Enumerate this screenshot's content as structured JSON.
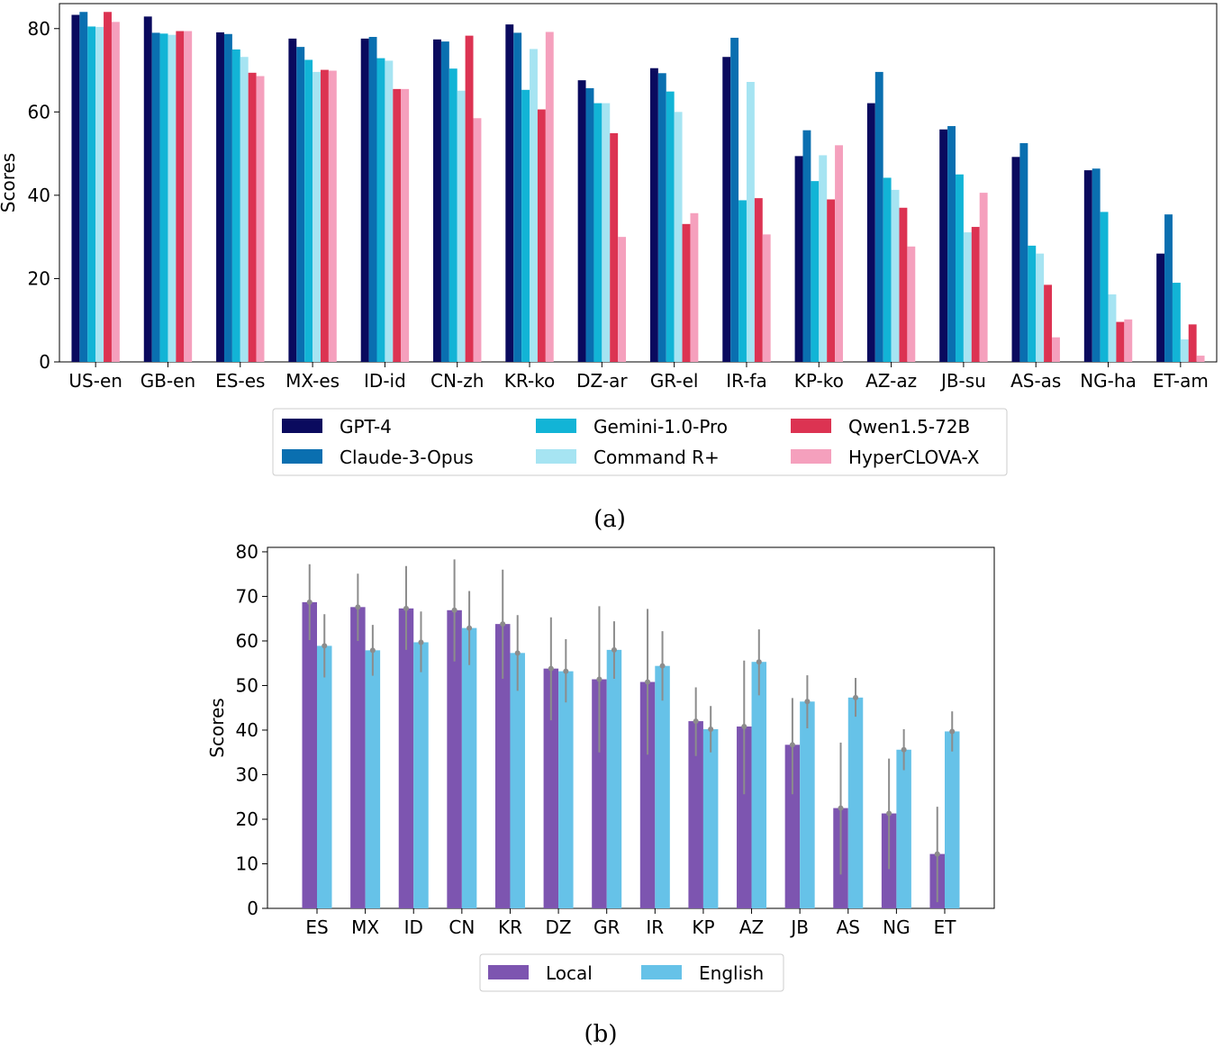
{
  "colors": {
    "gpt4": "#0a0a5e",
    "claude": "#0a6fb0",
    "gemini": "#12b4d6",
    "command": "#a6e4f2",
    "qwen": "#dc3352",
    "hyperclova": "#f5a0bd",
    "local": "#7d55b0",
    "english": "#66c2e8",
    "errorbar": "#8c8c8c"
  },
  "chart_data": [
    {
      "type": "bar",
      "caption": "(a)",
      "ylabel": "Scores",
      "xlabel": "",
      "ylim": [
        0,
        86
      ],
      "yticks": [
        0,
        20,
        40,
        60,
        80
      ],
      "grid": false,
      "legend_position": "bottom-center",
      "categories": [
        "US-en",
        "GB-en",
        "ES-es",
        "MX-es",
        "ID-id",
        "CN-zh",
        "KR-ko",
        "DZ-ar",
        "GR-el",
        "IR-fa",
        "KP-ko",
        "AZ-az",
        "JB-su",
        "AS-as",
        "NG-ha",
        "ET-am"
      ],
      "series": [
        {
          "name": "GPT-4",
          "color_key": "gpt4",
          "values": [
            83.3,
            82.9,
            79.1,
            77.6,
            77.6,
            77.4,
            81.0,
            67.6,
            70.5,
            73.2,
            49.4,
            62.1,
            55.8,
            49.2,
            46.0,
            26.0
          ]
        },
        {
          "name": "Claude-3-Opus",
          "color_key": "claude",
          "values": [
            84.0,
            79.0,
            78.7,
            75.6,
            78.0,
            76.9,
            79.0,
            65.7,
            69.3,
            77.8,
            55.6,
            69.6,
            56.6,
            52.5,
            46.4,
            35.4
          ]
        },
        {
          "name": "Gemini-1.0-Pro",
          "color_key": "gemini",
          "values": [
            80.5,
            78.8,
            75.0,
            72.5,
            72.9,
            70.4,
            65.3,
            62.1,
            64.9,
            38.8,
            43.4,
            44.2,
            45.0,
            27.9,
            36.0,
            19.0
          ]
        },
        {
          "name": "Command R+",
          "color_key": "command",
          "values": [
            80.4,
            78.5,
            73.2,
            69.6,
            72.3,
            65.1,
            75.1,
            62.1,
            60.0,
            67.2,
            49.6,
            41.3,
            31.1,
            26.0,
            16.2,
            5.4
          ]
        },
        {
          "name": "Qwen1.5-72B",
          "color_key": "qwen",
          "values": [
            84.0,
            79.4,
            69.4,
            70.1,
            65.5,
            78.3,
            60.6,
            54.9,
            33.1,
            39.3,
            39.0,
            37.0,
            32.4,
            18.5,
            9.6,
            9.0
          ]
        },
        {
          "name": "HyperCLOVA-X",
          "color_key": "hyperclova",
          "values": [
            81.6,
            79.4,
            68.6,
            69.9,
            65.5,
            58.5,
            79.2,
            30.0,
            35.7,
            30.6,
            52.0,
            27.7,
            40.6,
            5.9,
            10.2,
            1.5
          ]
        }
      ]
    },
    {
      "type": "bar",
      "caption": "(b)",
      "ylabel": "Scores",
      "xlabel": "",
      "ylim": [
        0,
        81
      ],
      "yticks": [
        0,
        10,
        20,
        30,
        40,
        50,
        60,
        70,
        80
      ],
      "grid": false,
      "legend_position": "bottom-center",
      "categories": [
        "ES",
        "MX",
        "ID",
        "CN",
        "KR",
        "DZ",
        "GR",
        "IR",
        "KP",
        "AZ",
        "JB",
        "AS",
        "NG",
        "ET"
      ],
      "series": [
        {
          "name": "Local",
          "color_key": "local",
          "values": [
            68.7,
            67.6,
            67.3,
            66.9,
            63.8,
            53.8,
            51.4,
            50.8,
            42.0,
            40.8,
            36.7,
            22.5,
            21.3,
            12.2
          ],
          "error_low": [
            60.2,
            60.0,
            58.0,
            55.4,
            51.5,
            42.2,
            35.0,
            34.5,
            34.2,
            25.6,
            25.6,
            7.6,
            8.8,
            1.4
          ],
          "error_high": [
            77.2,
            75.1,
            76.8,
            78.3,
            76.0,
            65.3,
            67.8,
            67.2,
            49.6,
            55.6,
            47.2,
            37.2,
            33.6,
            22.8
          ]
        },
        {
          "name": "English",
          "color_key": "english",
          "values": [
            58.9,
            57.9,
            59.7,
            62.9,
            57.3,
            53.2,
            58.0,
            54.4,
            40.2,
            55.3,
            46.4,
            47.3,
            35.6,
            39.7
          ],
          "error_low": [
            51.8,
            52.2,
            53.0,
            54.6,
            48.8,
            46.2,
            51.5,
            46.6,
            35.0,
            47.8,
            40.4,
            43.0,
            31.0,
            35.2
          ],
          "error_high": [
            66.0,
            63.6,
            66.6,
            71.2,
            65.8,
            60.4,
            64.4,
            62.2,
            45.4,
            62.6,
            52.3,
            51.7,
            40.2,
            44.2
          ]
        }
      ]
    }
  ]
}
